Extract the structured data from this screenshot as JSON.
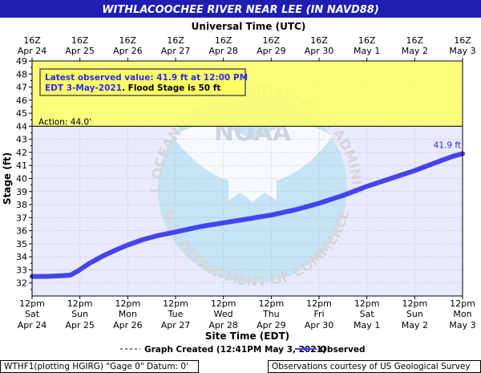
{
  "title": "WITHLACOOCHEE RIVER NEAR LEE (IN NAVD88)",
  "top_axis_title": "Universal Time (UTC)",
  "top_ticks": [
    {
      "l1": "16Z",
      "l2": "Apr 24"
    },
    {
      "l1": "16Z",
      "l2": "Apr 25"
    },
    {
      "l1": "16Z",
      "l2": "Apr 26"
    },
    {
      "l1": "16Z",
      "l2": "Apr 27"
    },
    {
      "l1": "16Z",
      "l2": "Apr 28"
    },
    {
      "l1": "16Z",
      "l2": "Apr 29"
    },
    {
      "l1": "16Z",
      "l2": "Apr 30"
    },
    {
      "l1": "16Z",
      "l2": "May  1"
    },
    {
      "l1": "16Z",
      "l2": "May  2"
    },
    {
      "l1": "16Z",
      "l2": "May  3"
    }
  ],
  "bottom_ticks": [
    {
      "l1": "12pm",
      "l2": "Sat",
      "l3": "Apr 24"
    },
    {
      "l1": "12pm",
      "l2": "Sun",
      "l3": "Apr 25"
    },
    {
      "l1": "12pm",
      "l2": "Mon",
      "l3": "Apr 26"
    },
    {
      "l1": "12pm",
      "l2": "Tue",
      "l3": "Apr 27"
    },
    {
      "l1": "12pm",
      "l2": "Wed",
      "l3": "Apr 28"
    },
    {
      "l1": "12pm",
      "l2": "Thu",
      "l3": "Apr 29"
    },
    {
      "l1": "12pm",
      "l2": "Fri",
      "l3": "Apr 30"
    },
    {
      "l1": "12pm",
      "l2": "Sat",
      "l3": "May 1"
    },
    {
      "l1": "12pm",
      "l2": "Sun",
      "l3": "May 2"
    },
    {
      "l1": "12pm",
      "l2": "Mon",
      "l3": "May 3"
    }
  ],
  "xlabel": "Site Time (EDT)",
  "ylabel": "Stage (ft)",
  "y_ticks": [
    32,
    33,
    34,
    35,
    36,
    37,
    38,
    39,
    40,
    41,
    42,
    43,
    44,
    45,
    46,
    47,
    48,
    49
  ],
  "action_label": "Action: 44.0'",
  "latest_line1": "Latest observed value: 41.9 ft at 12:00 PM",
  "latest_line2a": "EDT 3-May-2021",
  "latest_line2b": ". Flood Stage is 50 ft",
  "last_value_label": "41.9 ft",
  "legend_created": "Graph Created (12:41PM May 3, 2021)",
  "legend_observed": "Observed",
  "footer_left": "WTHF1(plotting HGIRG) \"Gage 0\" Datum: 0'",
  "footer_right": "Observations courtesy of US Geological Survey",
  "watermark_text_top": "NATIONAL OCEANIC AND ATMOSPHERIC ADMINISTRATION",
  "watermark_text_bottom": "U.S. DEPARTMENT OF COMMERCE",
  "watermark_logo": "NOAA",
  "colors": {
    "title_bg": "#1e1eb4",
    "plot_bg": "#eaeafe",
    "action_band": "#ffff66",
    "series": "#4444ee",
    "accent_text": "#2a2af0",
    "grid": "#b8b8b8"
  },
  "chart_data": {
    "type": "line",
    "x_unit": "days after Apr 24 12pm EDT",
    "ylim": [
      31,
      49
    ],
    "xlim": [
      0,
      9
    ],
    "action_stage": 44.0,
    "flood_stage": 50,
    "series": [
      {
        "name": "Observed",
        "points": [
          [
            0.0,
            32.5
          ],
          [
            0.3,
            32.5
          ],
          [
            0.6,
            32.55
          ],
          [
            0.8,
            32.6
          ],
          [
            0.95,
            32.9
          ],
          [
            1.2,
            33.5
          ],
          [
            1.5,
            34.1
          ],
          [
            1.8,
            34.6
          ],
          [
            2.0,
            34.9
          ],
          [
            2.3,
            35.3
          ],
          [
            2.6,
            35.6
          ],
          [
            3.0,
            35.9
          ],
          [
            3.5,
            36.3
          ],
          [
            4.0,
            36.6
          ],
          [
            4.5,
            36.9
          ],
          [
            5.0,
            37.2
          ],
          [
            5.5,
            37.6
          ],
          [
            6.0,
            38.1
          ],
          [
            6.5,
            38.7
          ],
          [
            7.0,
            39.4
          ],
          [
            7.5,
            40.0
          ],
          [
            8.0,
            40.6
          ],
          [
            8.5,
            41.3
          ],
          [
            8.8,
            41.7
          ],
          [
            9.0,
            41.9
          ]
        ]
      }
    ]
  }
}
